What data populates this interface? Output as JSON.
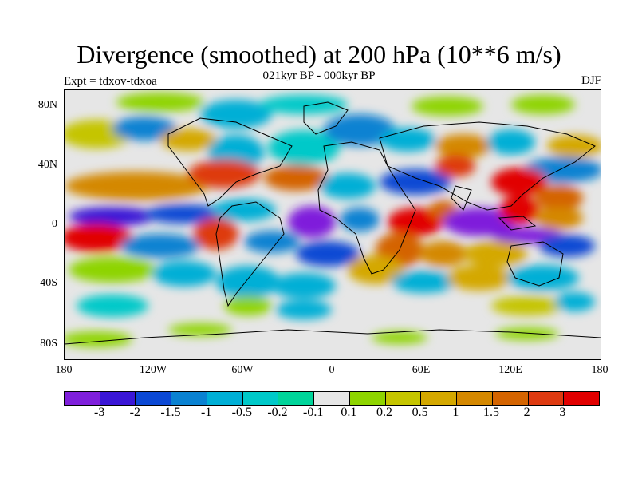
{
  "title": "Divergence (smoothed) at 200 hPa (10**6 m/s)",
  "subtitle_center": "021kyr BP - 000kyr BP",
  "subtitle_left": "Expt = tdxov-tdxoa",
  "subtitle_right": "DJF",
  "lat_labels": [
    "80N",
    "40N",
    "0",
    "40S",
    "80S"
  ],
  "lon_labels": [
    "180",
    "120W",
    "60W",
    "0",
    "60E",
    "120E",
    "180"
  ],
  "colorbar": {
    "colors": [
      "#7f1fdb",
      "#3a16d6",
      "#0b48d4",
      "#0a82d2",
      "#00afd6",
      "#00c9c9",
      "#00d49a",
      "#e6e6e6",
      "#8ed400",
      "#c5c500",
      "#d4a800",
      "#d48800",
      "#d46400",
      "#de3a10",
      "#e10000"
    ],
    "labels": [
      "-3",
      "-2",
      "-1.5",
      "-1",
      "-0.5",
      "-0.2",
      "-0.1",
      "0.1",
      "0.2",
      "0.5",
      "1",
      "1.5",
      "2",
      "3"
    ]
  }
}
